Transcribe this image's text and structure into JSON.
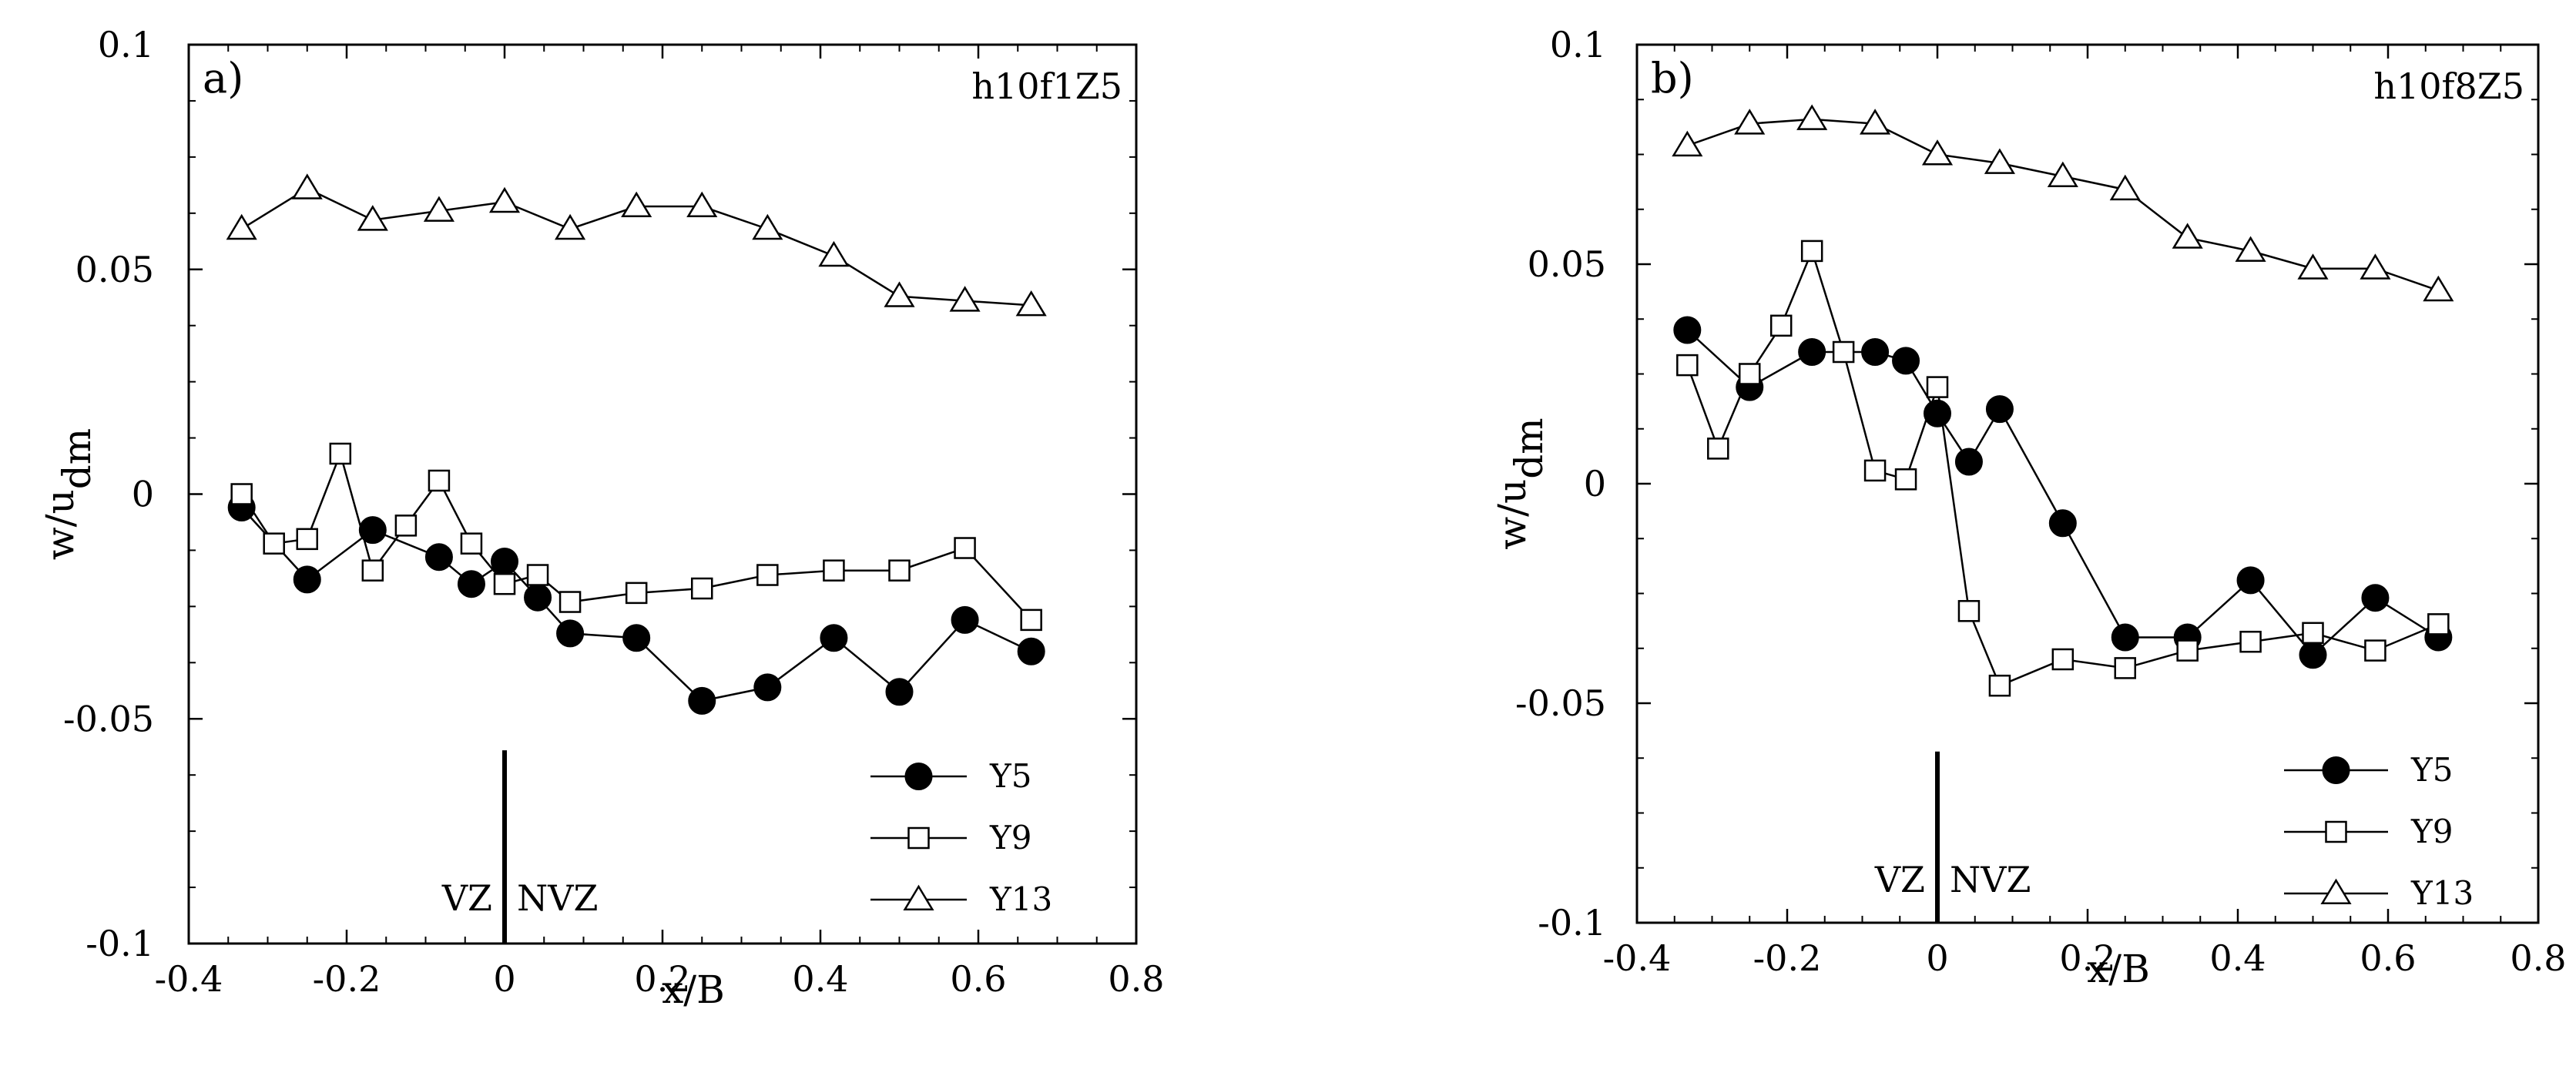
{
  "chart_data": [
    {
      "type": "line",
      "panel_label": "a)",
      "case_label": "h10f1Z5",
      "xlabel": "x/B",
      "ylabel_main": "w/u",
      "ylabel_sub": "dm",
      "xlim": [
        -0.4,
        0.8
      ],
      "ylim": [
        -0.1,
        0.1
      ],
      "xticks": [
        -0.4,
        -0.2,
        0,
        0.2,
        0.4,
        0.6,
        0.8
      ],
      "xtick_labels": [
        "-0.4",
        "-0.2",
        "0",
        "0.2",
        "0.4",
        "0.6",
        "0.8"
      ],
      "yticks": [
        -0.1,
        -0.05,
        0,
        0.05,
        0.1
      ],
      "ytick_labels": [
        "-0.1",
        "-0.05",
        "0",
        "0.05",
        "0.1"
      ],
      "zone_left": "VZ",
      "zone_right": "NVZ",
      "zone_line_x": 0,
      "zone_line_top": -0.057,
      "legend_position": "bottom-right",
      "series": [
        {
          "name": "Y5",
          "marker": "filled-circle",
          "x": [
            -0.333,
            -0.25,
            -0.167,
            -0.083,
            -0.042,
            0,
            0.042,
            0.083,
            0.167,
            0.25,
            0.333,
            0.417,
            0.5,
            0.583,
            0.667
          ],
          "y": [
            -0.003,
            -0.019,
            -0.008,
            -0.014,
            -0.02,
            -0.015,
            -0.023,
            -0.031,
            -0.032,
            -0.046,
            -0.043,
            -0.032,
            -0.044,
            -0.028,
            -0.035
          ]
        },
        {
          "name": "Y9",
          "marker": "open-square",
          "x": [
            -0.333,
            -0.292,
            -0.25,
            -0.208,
            -0.167,
            -0.125,
            -0.083,
            -0.042,
            0,
            0.042,
            0.083,
            0.167,
            0.25,
            0.333,
            0.417,
            0.5,
            0.583,
            0.667
          ],
          "y": [
            0.0,
            -0.011,
            -0.01,
            0.009,
            -0.017,
            -0.007,
            0.003,
            -0.011,
            -0.02,
            -0.018,
            -0.024,
            -0.022,
            -0.021,
            -0.018,
            -0.017,
            -0.017,
            -0.012,
            -0.028
          ]
        },
        {
          "name": "Y13",
          "marker": "open-triangle",
          "x": [
            -0.333,
            -0.25,
            -0.167,
            -0.083,
            0,
            0.083,
            0.167,
            0.25,
            0.333,
            0.417,
            0.5,
            0.583,
            0.667
          ],
          "y": [
            0.059,
            0.068,
            0.061,
            0.063,
            0.065,
            0.059,
            0.064,
            0.064,
            0.059,
            0.053,
            0.044,
            0.043,
            0.042
          ]
        }
      ]
    },
    {
      "type": "line",
      "panel_label": "b)",
      "case_label": "h10f8Z5",
      "xlabel": "x/B",
      "ylabel_main": "w/u",
      "ylabel_sub": "dm",
      "xlim": [
        -0.4,
        0.8
      ],
      "ylim": [
        -0.1,
        0.1
      ],
      "xticks": [
        -0.4,
        -0.2,
        0,
        0.2,
        0.4,
        0.6,
        0.8
      ],
      "xtick_labels": [
        "-0.4",
        "-0.2",
        "0",
        "0.2",
        "0.4",
        "0.6",
        "0.8"
      ],
      "yticks": [
        -0.1,
        -0.05,
        0,
        0.05,
        0.1
      ],
      "ytick_labels": [
        "-0.1",
        "-0.05",
        "0",
        "0.05",
        "0.1"
      ],
      "zone_left": "VZ",
      "zone_right": "NVZ",
      "zone_line_x": 0,
      "zone_line_top": -0.061,
      "legend_position": "bottom-right",
      "series": [
        {
          "name": "Y5",
          "marker": "filled-circle",
          "x": [
            -0.333,
            -0.25,
            -0.167,
            -0.083,
            -0.042,
            0,
            0.042,
            0.083,
            0.167,
            0.25,
            0.333,
            0.417,
            0.5,
            0.583,
            0.667
          ],
          "y": [
            0.035,
            0.022,
            0.03,
            0.03,
            0.028,
            0.016,
            0.005,
            0.017,
            -0.009,
            -0.035,
            -0.035,
            -0.022,
            -0.039,
            -0.026,
            -0.035
          ]
        },
        {
          "name": "Y9",
          "marker": "open-square",
          "x": [
            -0.333,
            -0.292,
            -0.25,
            -0.208,
            -0.167,
            -0.125,
            -0.083,
            -0.042,
            0,
            0.042,
            0.083,
            0.167,
            0.25,
            0.333,
            0.417,
            0.5,
            0.583,
            0.667
          ],
          "y": [
            0.027,
            0.008,
            0.025,
            0.036,
            0.053,
            0.03,
            0.003,
            0.001,
            0.022,
            -0.029,
            -0.046,
            -0.04,
            -0.042,
            -0.038,
            -0.036,
            -0.034,
            -0.038,
            -0.032
          ]
        },
        {
          "name": "Y13",
          "marker": "open-triangle",
          "x": [
            -0.333,
            -0.25,
            -0.167,
            -0.083,
            0,
            0.083,
            0.167,
            0.25,
            0.333,
            0.417,
            0.5,
            0.583,
            0.667
          ],
          "y": [
            0.077,
            0.082,
            0.083,
            0.082,
            0.075,
            0.073,
            0.07,
            0.067,
            0.056,
            0.053,
            0.049,
            0.049,
            0.044
          ]
        }
      ]
    }
  ]
}
